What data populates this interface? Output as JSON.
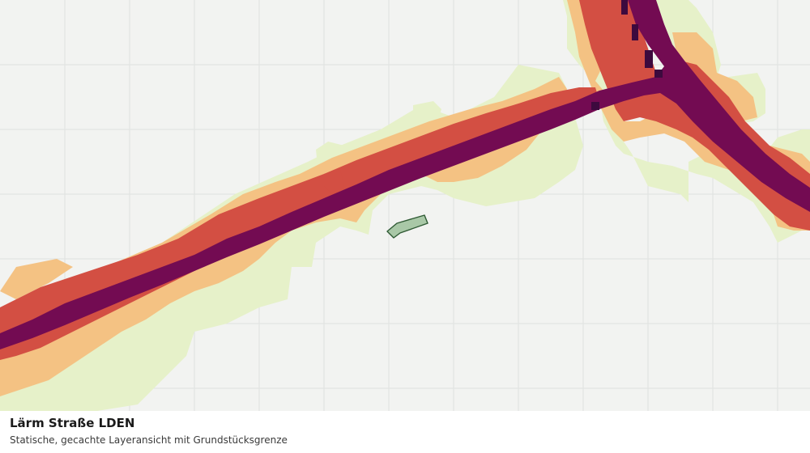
{
  "map": {
    "title": "Lärm Straße LDEN",
    "subtitle": "Statische, gecachte Layeransicht mit Grundstücksgrenze",
    "background_color": "#f2f3f1",
    "grid_color": "#dfe2df",
    "legend_colors": {
      "band_low": "#e6f1c9",
      "band_mid": "#f4c283",
      "band_high": "#d34f43",
      "band_very_high": "#730b52",
      "band_extreme": "#3d0a3e"
    },
    "parcel": {
      "fill": "#a9c8a7",
      "stroke": "#2f5a34",
      "icon": "parcel-boundary"
    }
  }
}
